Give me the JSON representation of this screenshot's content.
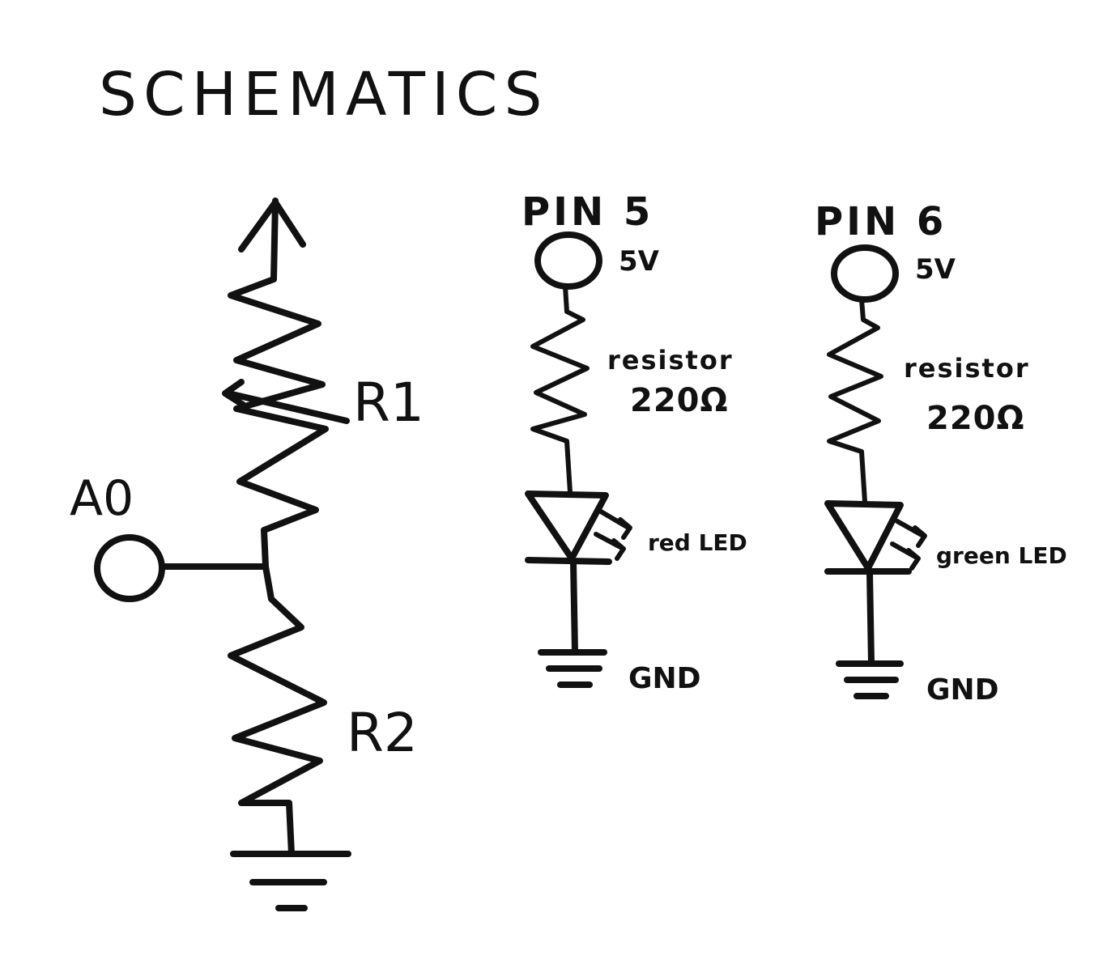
{
  "title": "SCHEMATICS",
  "colors": {
    "ink": "#111111",
    "background": "#ffffff"
  },
  "divider": {
    "input_label": "A0",
    "resistor_top_label": "R1",
    "resistor_bottom_label": "R2"
  },
  "circuits": [
    {
      "pin_label": "PIN 5",
      "voltage_label": "5V",
      "resistor_label": "resistor",
      "resistor_value": "220Ω",
      "led_label": "red LED",
      "ground_label": "GND"
    },
    {
      "pin_label": "PIN 6",
      "voltage_label": "5V",
      "resistor_label": "resistor",
      "resistor_value": "220Ω",
      "led_label": "green LED",
      "ground_label": "GND"
    }
  ]
}
